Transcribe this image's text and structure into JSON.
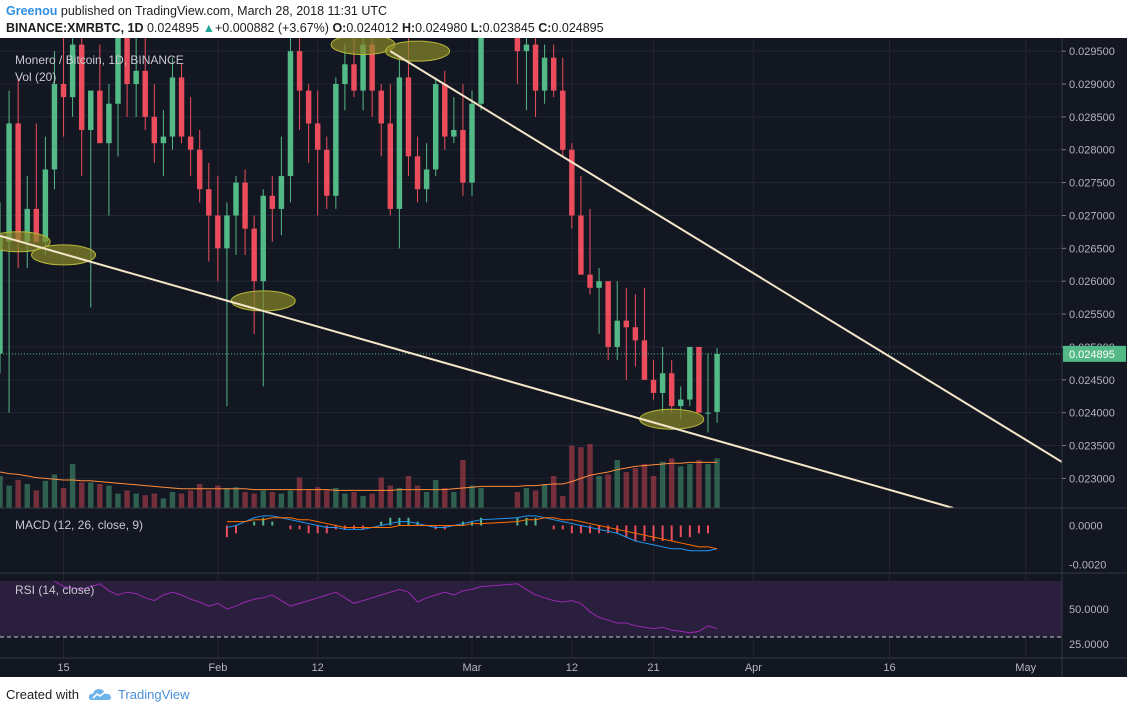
{
  "header": {
    "author": "Greenou",
    "published": "published on TradingView.com, March 28, 2018 11:31 UTC",
    "symbol": "BINANCE:XMRBTC, 1D",
    "last": "0.024895",
    "change_arrow": "▲",
    "change": "+0.000882 (+3.67%)",
    "o_label": "O:",
    "o_value": "0.024012",
    "h_label": "H:",
    "h_value": "0.024980",
    "l_label": "L:",
    "l_value": "0.023845",
    "c_label": "C:",
    "c_value": "0.024895"
  },
  "legends": {
    "main": "Monero / Bitcoin, 1D, BINANCE",
    "vol": "Vol (20)",
    "macd": "MACD (12, 26, close, 9)",
    "rsi": "RSI (14, close)"
  },
  "footer": {
    "created": "Created with",
    "brand": "TradingView",
    "logo_icon": "tradingview-cloud-icon"
  },
  "colors": {
    "background": "#131722",
    "up": "#53b987",
    "down": "#eb4d5c",
    "trendline": "#f5e6c8",
    "highlight": "#8a8a2a",
    "macd_line": "#2196f3",
    "signal_line": "#ff6d00",
    "rsi_line": "#9c27b0",
    "rsi_band": "#2a1f3d",
    "vol_ma": "#ff8c3a"
  },
  "chart_data": {
    "type": "candlestick",
    "price_axis": {
      "min": 0.02255,
      "max": 0.0297,
      "ticks": [
        "0.029500",
        "0.029000",
        "0.028500",
        "0.028000",
        "0.027500",
        "0.027000",
        "0.026500",
        "0.026000",
        "0.025500",
        "0.025000",
        "0.024500",
        "0.024000",
        "0.023500",
        "0.023000"
      ],
      "tick_values": [
        0.0295,
        0.029,
        0.0285,
        0.028,
        0.0275,
        0.027,
        0.0265,
        0.026,
        0.0255,
        0.025,
        0.0245,
        0.024,
        0.0235,
        0.023
      ],
      "last_price_label": "0.024895",
      "last_price": 0.024895
    },
    "time_axis": {
      "labels": [
        "15",
        "Feb",
        "12",
        "Mar",
        "12",
        "21",
        "Apr",
        "16",
        "May"
      ],
      "label_days": [
        14,
        31,
        42,
        59,
        70,
        79,
        90,
        105,
        120
      ],
      "day_min": 7,
      "day_max": 124,
      "day_origin": "2018-01-01"
    },
    "candles_note": "day index relative to 2018-01-01; o,h,l,c in BTC",
    "candles": [
      {
        "d": 7,
        "o": 0.0249,
        "h": 0.0272,
        "l": 0.0246,
        "c": 0.0267
      },
      {
        "d": 8,
        "o": 0.0266,
        "h": 0.0289,
        "l": 0.024,
        "c": 0.0284
      },
      {
        "d": 9,
        "o": 0.0284,
        "h": 0.0291,
        "l": 0.0262,
        "c": 0.0266
      },
      {
        "d": 10,
        "o": 0.0266,
        "h": 0.0276,
        "l": 0.0262,
        "c": 0.0271
      },
      {
        "d": 11,
        "o": 0.0271,
        "h": 0.0284,
        "l": 0.0266,
        "c": 0.0266
      },
      {
        "d": 12,
        "o": 0.0266,
        "h": 0.0282,
        "l": 0.0264,
        "c": 0.0277
      },
      {
        "d": 13,
        "o": 0.0277,
        "h": 0.0295,
        "l": 0.0274,
        "c": 0.029
      },
      {
        "d": 14,
        "o": 0.029,
        "h": 0.0298,
        "l": 0.0282,
        "c": 0.0288
      },
      {
        "d": 15,
        "o": 0.0288,
        "h": 0.0298,
        "l": 0.0285,
        "c": 0.0296
      },
      {
        "d": 16,
        "o": 0.0296,
        "h": 0.0298,
        "l": 0.0276,
        "c": 0.0283
      },
      {
        "d": 17,
        "o": 0.0283,
        "h": 0.0289,
        "l": 0.0256,
        "c": 0.0289
      },
      {
        "d": 18,
        "o": 0.0289,
        "h": 0.0296,
        "l": 0.0281,
        "c": 0.0281
      },
      {
        "d": 19,
        "o": 0.0281,
        "h": 0.029,
        "l": 0.027,
        "c": 0.0287
      },
      {
        "d": 20,
        "o": 0.0287,
        "h": 0.0298,
        "l": 0.0279,
        "c": 0.0297
      },
      {
        "d": 21,
        "o": 0.0297,
        "h": 0.0298,
        "l": 0.0285,
        "c": 0.029
      },
      {
        "d": 22,
        "o": 0.029,
        "h": 0.0298,
        "l": 0.0285,
        "c": 0.0292
      },
      {
        "d": 23,
        "o": 0.0292,
        "h": 0.0298,
        "l": 0.0283,
        "c": 0.0285
      },
      {
        "d": 24,
        "o": 0.0285,
        "h": 0.029,
        "l": 0.0278,
        "c": 0.0281
      },
      {
        "d": 25,
        "o": 0.0281,
        "h": 0.0286,
        "l": 0.0276,
        "c": 0.0282
      },
      {
        "d": 26,
        "o": 0.0282,
        "h": 0.0294,
        "l": 0.028,
        "c": 0.0291
      },
      {
        "d": 27,
        "o": 0.0291,
        "h": 0.0293,
        "l": 0.0281,
        "c": 0.0282
      },
      {
        "d": 28,
        "o": 0.0282,
        "h": 0.0288,
        "l": 0.0276,
        "c": 0.028
      },
      {
        "d": 29,
        "o": 0.028,
        "h": 0.0283,
        "l": 0.0272,
        "c": 0.0274
      },
      {
        "d": 30,
        "o": 0.0274,
        "h": 0.0278,
        "l": 0.0263,
        "c": 0.027
      },
      {
        "d": 31,
        "o": 0.027,
        "h": 0.0276,
        "l": 0.026,
        "c": 0.0265
      },
      {
        "d": 32,
        "o": 0.0265,
        "h": 0.0272,
        "l": 0.0241,
        "c": 0.027
      },
      {
        "d": 33,
        "o": 0.027,
        "h": 0.0276,
        "l": 0.0264,
        "c": 0.0275
      },
      {
        "d": 34,
        "o": 0.0275,
        "h": 0.0277,
        "l": 0.0264,
        "c": 0.0268
      },
      {
        "d": 35,
        "o": 0.0268,
        "h": 0.027,
        "l": 0.0252,
        "c": 0.026
      },
      {
        "d": 36,
        "o": 0.026,
        "h": 0.0274,
        "l": 0.0244,
        "c": 0.0273
      },
      {
        "d": 37,
        "o": 0.0273,
        "h": 0.0276,
        "l": 0.0266,
        "c": 0.0271
      },
      {
        "d": 38,
        "o": 0.0271,
        "h": 0.0282,
        "l": 0.0267,
        "c": 0.0276
      },
      {
        "d": 39,
        "o": 0.0276,
        "h": 0.0298,
        "l": 0.0272,
        "c": 0.0295
      },
      {
        "d": 40,
        "o": 0.0295,
        "h": 0.0298,
        "l": 0.0283,
        "c": 0.0289
      },
      {
        "d": 41,
        "o": 0.0289,
        "h": 0.029,
        "l": 0.0278,
        "c": 0.0284
      },
      {
        "d": 42,
        "o": 0.0284,
        "h": 0.0289,
        "l": 0.027,
        "c": 0.028
      },
      {
        "d": 43,
        "o": 0.028,
        "h": 0.0282,
        "l": 0.0271,
        "c": 0.0273
      },
      {
        "d": 44,
        "o": 0.0273,
        "h": 0.0291,
        "l": 0.0271,
        "c": 0.029
      },
      {
        "d": 45,
        "o": 0.029,
        "h": 0.0296,
        "l": 0.0286,
        "c": 0.0293
      },
      {
        "d": 46,
        "o": 0.0293,
        "h": 0.0297,
        "l": 0.0288,
        "c": 0.0289
      },
      {
        "d": 47,
        "o": 0.0289,
        "h": 0.0298,
        "l": 0.0286,
        "c": 0.0296
      },
      {
        "d": 48,
        "o": 0.0296,
        "h": 0.0298,
        "l": 0.0285,
        "c": 0.0289
      },
      {
        "d": 49,
        "o": 0.0289,
        "h": 0.029,
        "l": 0.0279,
        "c": 0.0284
      },
      {
        "d": 50,
        "o": 0.0284,
        "h": 0.029,
        "l": 0.027,
        "c": 0.0271
      },
      {
        "d": 51,
        "o": 0.0271,
        "h": 0.0294,
        "l": 0.0265,
        "c": 0.0291
      },
      {
        "d": 52,
        "o": 0.0291,
        "h": 0.0297,
        "l": 0.0276,
        "c": 0.0279
      },
      {
        "d": 53,
        "o": 0.0279,
        "h": 0.0282,
        "l": 0.0272,
        "c": 0.0274
      },
      {
        "d": 54,
        "o": 0.0274,
        "h": 0.0281,
        "l": 0.0272,
        "c": 0.0277
      },
      {
        "d": 55,
        "o": 0.0277,
        "h": 0.0291,
        "l": 0.0276,
        "c": 0.029
      },
      {
        "d": 56,
        "o": 0.029,
        "h": 0.0292,
        "l": 0.028,
        "c": 0.0282
      },
      {
        "d": 57,
        "o": 0.0282,
        "h": 0.0288,
        "l": 0.0281,
        "c": 0.0283
      },
      {
        "d": 58,
        "o": 0.0283,
        "h": 0.029,
        "l": 0.0273,
        "c": 0.0275
      },
      {
        "d": 59,
        "o": 0.0275,
        "h": 0.0289,
        "l": 0.0273,
        "c": 0.0287
      },
      {
        "d": 60,
        "o": 0.0287,
        "h": 0.0298,
        "l": 0.0286,
        "c": 0.0298
      },
      {
        "d": 64,
        "o": 0.0298,
        "h": 0.0298,
        "l": 0.029,
        "c": 0.0295
      },
      {
        "d": 65,
        "o": 0.0295,
        "h": 0.0298,
        "l": 0.0286,
        "c": 0.0296
      },
      {
        "d": 66,
        "o": 0.0296,
        "h": 0.0298,
        "l": 0.0285,
        "c": 0.0289
      },
      {
        "d": 67,
        "o": 0.0289,
        "h": 0.0296,
        "l": 0.0287,
        "c": 0.0294
      },
      {
        "d": 68,
        "o": 0.0294,
        "h": 0.0296,
        "l": 0.0288,
        "c": 0.0289
      },
      {
        "d": 69,
        "o": 0.0289,
        "h": 0.0294,
        "l": 0.0279,
        "c": 0.028
      },
      {
        "d": 70,
        "o": 0.028,
        "h": 0.0281,
        "l": 0.0268,
        "c": 0.027
      },
      {
        "d": 71,
        "o": 0.027,
        "h": 0.0276,
        "l": 0.0261,
        "c": 0.0261
      },
      {
        "d": 72,
        "o": 0.0261,
        "h": 0.0271,
        "l": 0.0258,
        "c": 0.0259
      },
      {
        "d": 73,
        "o": 0.0259,
        "h": 0.0262,
        "l": 0.0252,
        "c": 0.026
      },
      {
        "d": 74,
        "o": 0.026,
        "h": 0.026,
        "l": 0.0248,
        "c": 0.025
      },
      {
        "d": 75,
        "o": 0.025,
        "h": 0.026,
        "l": 0.0248,
        "c": 0.0254
      },
      {
        "d": 76,
        "o": 0.0254,
        "h": 0.0259,
        "l": 0.0245,
        "c": 0.0253
      },
      {
        "d": 77,
        "o": 0.0253,
        "h": 0.0258,
        "l": 0.0247,
        "c": 0.0251
      },
      {
        "d": 78,
        "o": 0.0251,
        "h": 0.0259,
        "l": 0.0245,
        "c": 0.0245
      },
      {
        "d": 79,
        "o": 0.0245,
        "h": 0.0248,
        "l": 0.0242,
        "c": 0.0243
      },
      {
        "d": 80,
        "o": 0.0243,
        "h": 0.025,
        "l": 0.024,
        "c": 0.0246
      },
      {
        "d": 81,
        "o": 0.0246,
        "h": 0.0248,
        "l": 0.024,
        "c": 0.0241
      },
      {
        "d": 82,
        "o": 0.0241,
        "h": 0.0244,
        "l": 0.0239,
        "c": 0.0242
      },
      {
        "d": 83,
        "o": 0.0242,
        "h": 0.025,
        "l": 0.0241,
        "c": 0.025
      },
      {
        "d": 84,
        "o": 0.025,
        "h": 0.025,
        "l": 0.024,
        "c": 0.024
      },
      {
        "d": 85,
        "o": 0.024,
        "h": 0.0249,
        "l": 0.0237,
        "c": 0.024
      },
      {
        "d": 86,
        "o": 0.024012,
        "h": 0.02498,
        "l": 0.023845,
        "c": 0.024895
      }
    ],
    "trendlines": [
      {
        "from": {
          "d": 7,
          "p": 0.02669
        },
        "to": {
          "d": 112,
          "p": 0.02255
        }
      },
      {
        "from": {
          "d": 50,
          "p": 0.0295
        },
        "to": {
          "d": 124,
          "p": 0.02325
        }
      }
    ],
    "highlights": [
      {
        "d": 9,
        "p": 0.0266
      },
      {
        "d": 14,
        "p": 0.0264
      },
      {
        "d": 36,
        "p": 0.0257
      },
      {
        "d": 47,
        "p": 0.0296
      },
      {
        "d": 53,
        "p": 0.0295
      },
      {
        "d": 81,
        "p": 0.0239
      }
    ],
    "volume": {
      "axis_max": 100,
      "values": [
        40,
        28,
        35,
        30,
        22,
        34,
        42,
        25,
        55,
        32,
        32,
        30,
        28,
        18,
        22,
        18,
        16,
        18,
        12,
        20,
        18,
        22,
        30,
        22,
        28,
        25,
        26,
        20,
        18,
        22,
        20,
        18,
        22,
        38,
        22,
        26,
        22,
        25,
        18,
        20,
        15,
        18,
        38,
        28,
        25,
        40,
        28,
        20,
        35,
        25,
        20,
        60,
        28,
        25,
        20,
        25,
        22,
        30,
        40,
        15,
        78,
        76,
        80,
        40,
        42,
        60,
        45,
        50,
        55,
        40,
        58,
        62,
        52,
        55,
        60,
        55,
        62,
        56,
        62,
        58,
        52,
        55,
        48,
        40,
        42,
        35,
        38
      ],
      "ma": [
        45,
        43,
        42,
        40,
        38,
        37,
        36,
        35,
        35,
        34,
        34,
        33,
        32,
        31,
        30,
        29,
        28,
        27,
        26,
        25,
        24,
        24,
        24,
        24,
        24,
        24,
        24,
        24,
        23,
        23,
        23,
        23,
        23,
        23,
        23,
        23,
        23,
        22,
        22,
        22,
        22,
        22,
        22,
        22,
        23,
        23,
        23,
        23,
        23,
        23,
        24,
        25,
        26,
        27,
        27,
        28,
        28,
        29,
        30,
        30,
        33,
        37,
        41,
        43,
        45,
        48,
        50,
        52,
        53,
        54,
        55,
        56,
        56,
        57,
        57,
        57,
        57,
        57,
        57,
        57,
        56,
        56,
        55,
        54,
        53,
        52,
        50
      ]
    },
    "macd": {
      "axis_ticks": [
        "0.0000",
        "-0.0020"
      ],
      "axis_values": [
        0.0,
        -0.002
      ],
      "min": -0.0024,
      "max": 0.0008,
      "macd_line": [
        -0.0001,
        0.0,
        0.0002,
        0.0004,
        0.0005,
        0.0005,
        0.0004,
        0.0003,
        0.0002,
        0.0001,
        0.0,
        -0.0001,
        -0.0001,
        -0.0002,
        -0.0002,
        -0.0002,
        -0.0001,
        0.0,
        0.0001,
        0.0002,
        0.0002,
        0.0001,
        0.0,
        -0.0001,
        -0.0001,
        0.0,
        0.0001,
        0.0002,
        0.0003,
        0.0004,
        0.0005,
        0.0005,
        0.0004,
        0.0003,
        0.0002,
        0.0001,
        0.0,
        -0.0001,
        -0.0002,
        -0.0003,
        -0.0004,
        -0.0006,
        -0.0008,
        -0.0009,
        -0.001,
        -0.0011,
        -0.0012,
        -0.0012,
        -0.0013,
        -0.0013,
        -0.0013,
        -0.0012
      ],
      "signal_line": [
        0.0002,
        0.0002,
        0.0002,
        0.0003,
        0.0003,
        0.0004,
        0.0004,
        0.0004,
        0.0003,
        0.0003,
        0.0002,
        0.0001,
        0.0,
        -0.0001,
        -0.0001,
        -0.0001,
        -0.0001,
        -0.0001,
        -0.0001,
        0.0,
        0.0,
        0.0,
        0.0,
        0.0,
        0.0,
        0.0,
        0.0,
        0.0001,
        0.0001,
        0.0002,
        0.0003,
        0.0003,
        0.0004,
        0.0004,
        0.0003,
        0.0003,
        0.0002,
        0.0001,
        0.0,
        -0.0001,
        -0.0002,
        -0.0003,
        -0.0004,
        -0.0005,
        -0.0006,
        -0.0007,
        -0.0008,
        -0.0009,
        -0.001,
        -0.0011,
        -0.0011,
        -0.0012
      ]
    },
    "rsi": {
      "axis_ticks": [
        "50.0000",
        "25.0000"
      ],
      "axis_values": [
        50,
        25
      ],
      "band": [
        30,
        70
      ],
      "min": 15,
      "max": 75,
      "values": [
        70,
        66,
        65,
        64,
        66,
        68,
        63,
        60,
        62,
        61,
        58,
        56,
        60,
        62,
        60,
        57,
        55,
        52,
        54,
        50,
        52,
        55,
        57,
        58,
        60,
        56,
        52,
        54,
        56,
        58,
        60,
        62,
        58,
        54,
        56,
        58,
        60,
        62,
        64,
        62,
        55,
        58,
        60,
        62,
        60,
        63,
        64,
        66,
        68,
        64,
        60,
        58,
        56,
        55,
        56,
        54,
        48,
        44,
        42,
        40,
        40,
        38,
        37,
        36,
        37,
        35,
        34,
        33,
        34,
        38,
        36
      ]
    }
  }
}
